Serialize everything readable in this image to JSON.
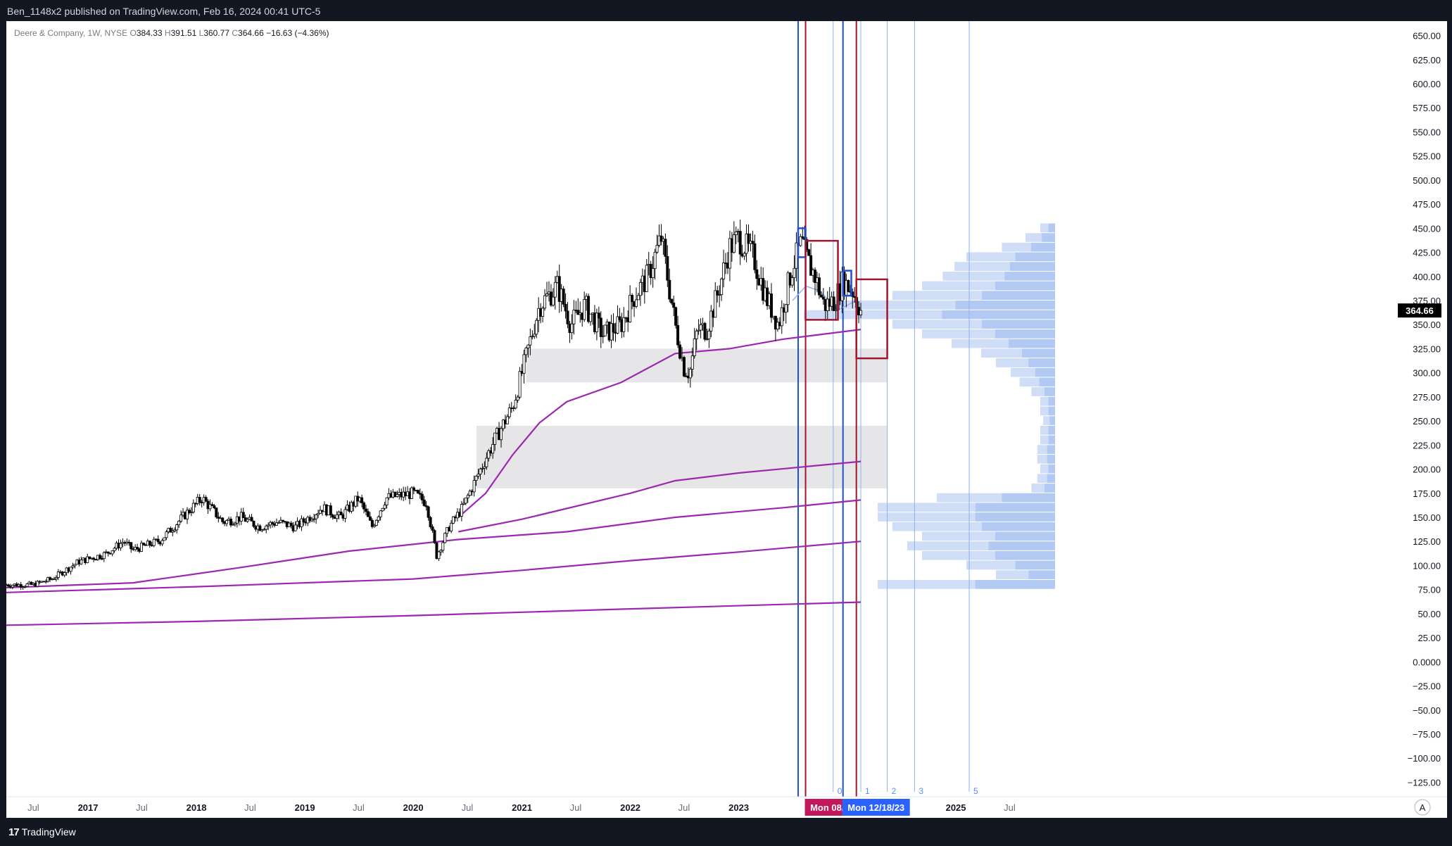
{
  "header": {
    "publish_line": "Ben_1148x2 published on TradingView.com, Feb 16, 2024 00:41 UTC-5"
  },
  "legend": {
    "symbol": "Deere & Company, 1W, NYSE",
    "open_label": "O",
    "open": "384.33",
    "high_label": "H",
    "high": "391.51",
    "low_label": "L",
    "low": "360.77",
    "close_label": "C",
    "close": "364.66",
    "change": "−16.63 (−4.36%)"
  },
  "footer": {
    "brand": "TradingView",
    "auto_scale_label": "A"
  },
  "chart_data": {
    "type": "candlestick",
    "symbol": "Deere & Company",
    "interval": "1W",
    "exchange": "NYSE",
    "ylim": [
      -140,
      665
    ],
    "xlim": [
      "2016-04-01",
      "2025-12-01"
    ],
    "y_ticks": [
      "650.00",
      "625.00",
      "600.00",
      "575.00",
      "550.00",
      "525.00",
      "500.00",
      "475.00",
      "450.00",
      "425.00",
      "400.00",
      "375.00",
      "350.00",
      "325.00",
      "300.00",
      "275.00",
      "250.00",
      "225.00",
      "200.00",
      "175.00",
      "150.00",
      "125.00",
      "100.00",
      "75.00",
      "50.00",
      "25.00",
      "0.0000",
      "−25.00",
      "−50.00",
      "−75.00",
      "−100.00",
      "−125.00"
    ],
    "x_ticks": [
      {
        "label": "Jul",
        "date": "2016-07-01",
        "kind": "month"
      },
      {
        "label": "2017",
        "date": "2017-01-01",
        "kind": "year"
      },
      {
        "label": "Jul",
        "date": "2017-07-01",
        "kind": "month"
      },
      {
        "label": "2018",
        "date": "2018-01-01",
        "kind": "year"
      },
      {
        "label": "Jul",
        "date": "2018-07-01",
        "kind": "month"
      },
      {
        "label": "2019",
        "date": "2019-01-01",
        "kind": "year"
      },
      {
        "label": "Jul",
        "date": "2019-07-01",
        "kind": "month"
      },
      {
        "label": "2020",
        "date": "2020-01-01",
        "kind": "year"
      },
      {
        "label": "Jul",
        "date": "2020-07-01",
        "kind": "month"
      },
      {
        "label": "2021",
        "date": "2021-01-01",
        "kind": "year"
      },
      {
        "label": "Jul",
        "date": "2021-07-01",
        "kind": "month"
      },
      {
        "label": "2022",
        "date": "2022-01-01",
        "kind": "year"
      },
      {
        "label": "Jul",
        "date": "2022-07-01",
        "kind": "month"
      },
      {
        "label": "2023",
        "date": "2023-01-01",
        "kind": "year"
      },
      {
        "label": "Jul",
        "date": "2024-07-01",
        "kind": "month"
      },
      {
        "label": "2025",
        "date": "2025-01-01",
        "kind": "year"
      },
      {
        "label": "Jul",
        "date": "2025-07-01",
        "kind": "month"
      }
    ],
    "price_path": [
      [
        "2016-04-01",
        80
      ],
      [
        "2016-07-01",
        80
      ],
      [
        "2016-09-01",
        86
      ],
      [
        "2016-12-01",
        104
      ],
      [
        "2017-03-01",
        112
      ],
      [
        "2017-05-01",
        125
      ],
      [
        "2017-06-01",
        116
      ],
      [
        "2017-09-01",
        126
      ],
      [
        "2017-12-01",
        155
      ],
      [
        "2018-01-20",
        170
      ],
      [
        "2018-04-01",
        145
      ],
      [
        "2018-06-01",
        150
      ],
      [
        "2018-08-01",
        140
      ],
      [
        "2018-10-01",
        145
      ],
      [
        "2018-12-01",
        140
      ],
      [
        "2019-03-01",
        160
      ],
      [
        "2019-05-01",
        150
      ],
      [
        "2019-07-01",
        170
      ],
      [
        "2019-08-15",
        140
      ],
      [
        "2019-10-01",
        170
      ],
      [
        "2020-01-01",
        175
      ],
      [
        "2020-02-15",
        165
      ],
      [
        "2020-03-20",
        110
      ],
      [
        "2020-05-01",
        140
      ],
      [
        "2020-06-15",
        160
      ],
      [
        "2020-08-15",
        200
      ],
      [
        "2020-10-01",
        230
      ],
      [
        "2020-12-01",
        265
      ],
      [
        "2021-01-01",
        300
      ],
      [
        "2021-03-01",
        370
      ],
      [
        "2021-05-01",
        390
      ],
      [
        "2021-06-15",
        350
      ],
      [
        "2021-08-01",
        370
      ],
      [
        "2021-10-01",
        340
      ],
      [
        "2021-12-01",
        350
      ],
      [
        "2022-01-15",
        380
      ],
      [
        "2022-03-01",
        400
      ],
      [
        "2022-04-15",
        440
      ],
      [
        "2022-06-01",
        350
      ],
      [
        "2022-07-01",
        305
      ],
      [
        "2022-07-20",
        300
      ],
      [
        "2022-08-15",
        345
      ],
      [
        "2022-09-15",
        345
      ],
      [
        "2022-10-20",
        380
      ],
      [
        "2022-12-01",
        430
      ],
      [
        "2023-01-01",
        440
      ],
      [
        "2023-02-20",
        420
      ],
      [
        "2023-04-01",
        380
      ],
      [
        "2023-05-15",
        350
      ],
      [
        "2023-07-01",
        410
      ],
      [
        "2023-08-01",
        435
      ],
      [
        "2023-08-15",
        420
      ],
      [
        "2023-09-15",
        400
      ],
      [
        "2023-10-15",
        370
      ],
      [
        "2023-11-20",
        375
      ],
      [
        "2023-12-18",
        395
      ],
      [
        "2024-01-20",
        385
      ],
      [
        "2024-02-16",
        364.66
      ]
    ],
    "moving_averages": [
      {
        "color": "#9c27b0",
        "points": [
          [
            "2020-06-01",
            150
          ],
          [
            "2020-09-01",
            175
          ],
          [
            "2020-12-01",
            215
          ],
          [
            "2021-03-01",
            248
          ],
          [
            "2021-06-01",
            270
          ],
          [
            "2021-12-01",
            290
          ],
          [
            "2022-06-01",
            320
          ],
          [
            "2022-12-01",
            325
          ],
          [
            "2023-06-01",
            335
          ],
          [
            "2024-02-16",
            345
          ]
        ]
      },
      {
        "color": "#9c27b0",
        "points": [
          [
            "2020-06-01",
            135
          ],
          [
            "2021-01-01",
            148
          ],
          [
            "2022-01-01",
            175
          ],
          [
            "2022-06-01",
            188
          ],
          [
            "2023-01-01",
            196
          ],
          [
            "2024-02-16",
            208
          ]
        ]
      },
      {
        "color": "#9c27b0",
        "points": [
          [
            "2016-04-01",
            77
          ],
          [
            "2017-06-01",
            82
          ],
          [
            "2018-06-01",
            98
          ],
          [
            "2019-06-01",
            115
          ],
          [
            "2020-06-01",
            127
          ],
          [
            "2021-06-01",
            135
          ],
          [
            "2022-06-01",
            150
          ],
          [
            "2023-06-01",
            160
          ],
          [
            "2024-02-16",
            168
          ]
        ]
      },
      {
        "color": "#9c27b0",
        "points": [
          [
            "2016-04-01",
            72
          ],
          [
            "2018-01-01",
            78
          ],
          [
            "2020-01-01",
            86
          ],
          [
            "2021-01-01",
            95
          ],
          [
            "2022-01-01",
            105
          ],
          [
            "2023-01-01",
            114
          ],
          [
            "2024-02-16",
            125
          ]
        ]
      },
      {
        "color": "#9c27b0",
        "points": [
          [
            "2016-04-01",
            38
          ],
          [
            "2018-01-01",
            42
          ],
          [
            "2020-01-01",
            48
          ],
          [
            "2022-01-01",
            55
          ],
          [
            "2024-02-16",
            62
          ]
        ]
      },
      {
        "color": "#90b4f0",
        "points": [
          [
            "2023-07-01",
            375
          ],
          [
            "2023-08-15",
            390
          ],
          [
            "2023-10-01",
            385
          ],
          [
            "2023-12-01",
            365
          ],
          [
            "2024-02-01",
            375
          ]
        ]
      }
    ],
    "zones": [
      {
        "from": "2021-01-15",
        "to": "2024-05-15",
        "low": 290,
        "high": 325,
        "color": "#e6e6e8"
      },
      {
        "from": "2020-08-01",
        "to": "2024-05-15",
        "low": 180,
        "high": 245,
        "color": "#e6e6e8"
      }
    ],
    "boxes": [
      {
        "from": "2023-07-20",
        "to": "2023-08-14",
        "low": 420,
        "high": 450,
        "color": "#1e4fd6"
      },
      {
        "from": "2023-08-14",
        "to": "2023-12-01",
        "low": 355,
        "high": 437,
        "color": "#a0162c"
      },
      {
        "from": "2023-12-18",
        "to": "2024-01-15",
        "low": 380,
        "high": 406,
        "color": "#1e4fd6"
      },
      {
        "from": "2024-02-01",
        "to": "2024-05-15",
        "low": 315,
        "high": 397,
        "color": "#a0162c"
      }
    ],
    "vertical_lines": [
      {
        "date": "2023-07-20",
        "color": "#1e4fd6"
      },
      {
        "date": "2023-08-14",
        "color": "#a0162c"
      },
      {
        "date": "2023-12-18",
        "color": "#1e4fd6"
      },
      {
        "date": "2024-02-01",
        "color": "#a0162c"
      }
    ],
    "fib_time_lines": [
      {
        "label": "0",
        "date": "2023-11-15"
      },
      {
        "label": "1",
        "date": "2024-02-16"
      },
      {
        "label": "2",
        "date": "2024-05-15"
      },
      {
        "label": "3",
        "date": "2024-08-15"
      },
      {
        "label": "5",
        "date": "2025-02-15"
      }
    ],
    "axis_date_labels": [
      {
        "text": "Mon 08/14/23",
        "date": "2023-08-14",
        "color": "#c2185b"
      },
      {
        "text": "Mon 12/18/23",
        "date": "2023-12-18",
        "color": "#2962ff"
      }
    ],
    "current_price_label": "364.66",
    "volume_profile": [
      [
        450,
        0.05
      ],
      [
        440,
        0.1
      ],
      [
        430,
        0.18
      ],
      [
        420,
        0.3
      ],
      [
        410,
        0.34
      ],
      [
        400,
        0.38
      ],
      [
        390,
        0.45
      ],
      [
        380,
        0.55
      ],
      [
        370,
        0.75
      ],
      [
        360,
        0.85
      ],
      [
        350,
        0.55
      ],
      [
        340,
        0.45
      ],
      [
        330,
        0.35
      ],
      [
        320,
        0.25
      ],
      [
        310,
        0.2
      ],
      [
        300,
        0.15
      ],
      [
        290,
        0.12
      ],
      [
        280,
        0.08
      ],
      [
        270,
        0.05
      ],
      [
        260,
        0.05
      ],
      [
        250,
        0.04
      ],
      [
        240,
        0.05
      ],
      [
        230,
        0.05
      ],
      [
        220,
        0.06
      ],
      [
        210,
        0.06
      ],
      [
        200,
        0.05
      ],
      [
        190,
        0.06
      ],
      [
        180,
        0.08
      ],
      [
        170,
        0.4
      ],
      [
        160,
        0.6
      ],
      [
        150,
        0.6
      ],
      [
        140,
        0.55
      ],
      [
        130,
        0.45
      ],
      [
        120,
        0.5
      ],
      [
        110,
        0.45
      ],
      [
        100,
        0.3
      ],
      [
        90,
        0.2
      ],
      [
        80,
        0.6
      ]
    ]
  }
}
